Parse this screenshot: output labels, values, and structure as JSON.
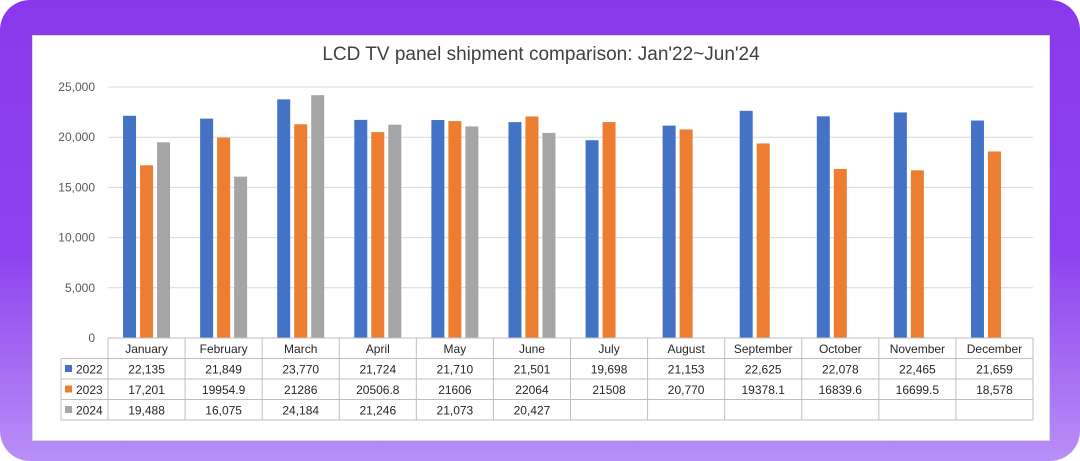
{
  "chart_data": {
    "type": "bar",
    "title": "LCD TV panel shipment comparison: Jan'22~Jun'24",
    "xlabel": "",
    "ylabel": "",
    "ylim": [
      0,
      25000
    ],
    "yticks": [
      "0",
      "5,000",
      "10,000",
      "15,000",
      "20,000",
      "25,000"
    ],
    "ytick_values": [
      0,
      5000,
      10000,
      15000,
      20000,
      25000
    ],
    "grid": true,
    "legend": "data-table",
    "categories": [
      "January",
      "February",
      "March",
      "April",
      "May",
      "June",
      "July",
      "August",
      "September",
      "October",
      "November",
      "December"
    ],
    "series": [
      {
        "name": "2022",
        "color": "#4472c4",
        "values": [
          22135,
          21849,
          23770,
          21724,
          21710,
          21501,
          19698,
          21153,
          22625,
          22078,
          22465,
          21659
        ],
        "labels": [
          "22,135",
          "21,849",
          "23,770",
          "21,724",
          "21,710",
          "21,501",
          "19,698",
          "21,153",
          "22,625",
          "22,078",
          "22,465",
          "21,659"
        ]
      },
      {
        "name": "2023",
        "color": "#ed7d31",
        "values": [
          17201,
          19954.9,
          21286,
          20506.8,
          21606,
          22064,
          21508,
          20770,
          19378.1,
          16839.6,
          16699.5,
          18578
        ],
        "labels": [
          "17,201",
          "19954.9",
          "21286",
          "20506.8",
          "21606",
          "22064",
          "21508",
          "20,770",
          "19378.1",
          "16839.6",
          "16699.5",
          "18,578"
        ]
      },
      {
        "name": "2024",
        "color": "#a5a5a5",
        "values": [
          19488,
          16075,
          24184,
          21246,
          21073,
          20427,
          null,
          null,
          null,
          null,
          null,
          null
        ],
        "labels": [
          "19,488",
          "16,075",
          "24,184",
          "21,246",
          "21,073",
          "20,427",
          "",
          "",
          "",
          "",
          "",
          ""
        ]
      }
    ]
  }
}
